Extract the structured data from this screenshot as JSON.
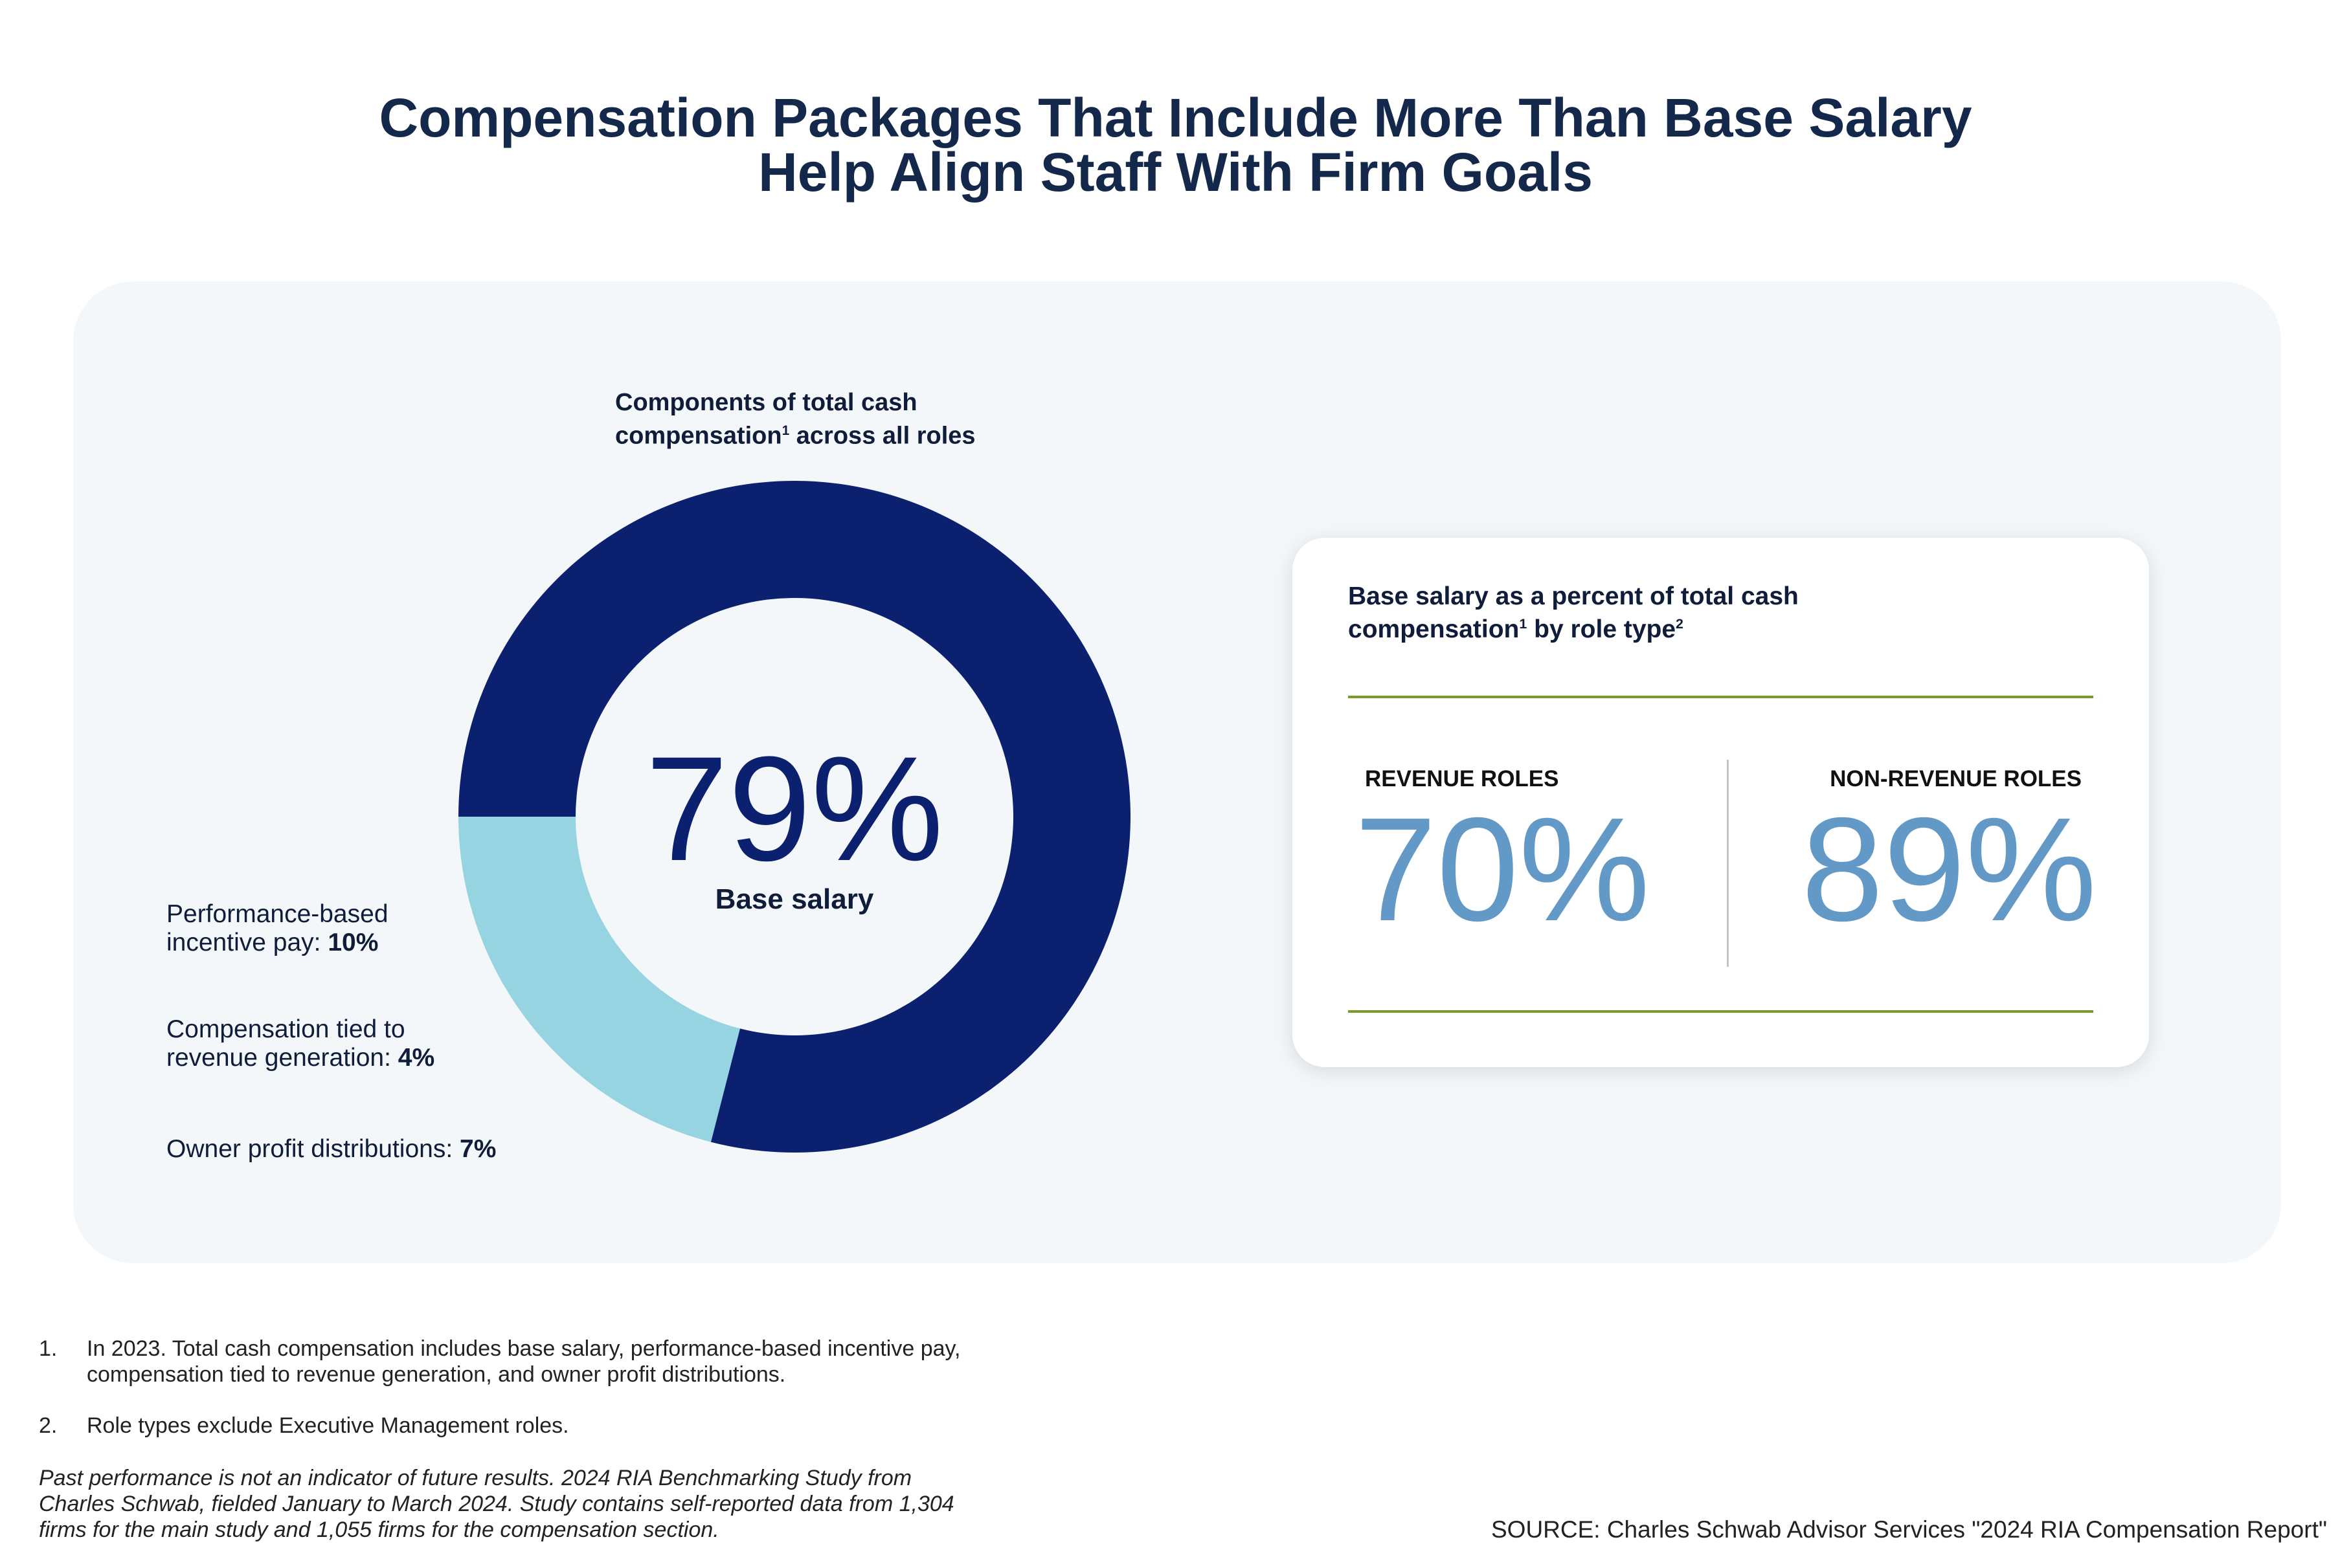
{
  "title": {
    "line1": "Compensation Packages That Include More Than Base Salary",
    "line2": "Help Align Staff With Firm Goals"
  },
  "chart_data": {
    "type": "pie",
    "title_line1": "Components of total cash",
    "title_line2": "compensation",
    "title_sup": "1",
    "title_line2_rest": " across all roles",
    "center_value": "79%",
    "center_label": "Base salary",
    "slices": [
      {
        "name": "Base salary",
        "value": 79,
        "color": "#0c2070"
      },
      {
        "name": "Performance-based incentive pay, compensation tied to revenue generation, owner profit distributions",
        "value": 21,
        "color": "#97d4e1"
      }
    ],
    "labels": [
      {
        "line1": "Performance-based",
        "line2": "incentive pay: ",
        "value": "10%"
      },
      {
        "line1": "Compensation tied to",
        "line2": "revenue generation: ",
        "value": "4%"
      },
      {
        "line1": "",
        "line2": "Owner profit distributions: ",
        "value": "7%"
      }
    ]
  },
  "card": {
    "title_line1": "Base salary as a percent of total cash",
    "title_line2": "compensation",
    "sup1": "1",
    "title_line2_rest": " by role type",
    "sup2": "2",
    "revenue_label": "REVENUE ROLES",
    "revenue_value": "70%",
    "nonrevenue_label": "NON-REVENUE ROLES",
    "nonrevenue_value": "89%",
    "accent_color": "#7a9a2a",
    "value_color": "#6299c6"
  },
  "footnotes": {
    "n1": "1.",
    "t1_line1": "In 2023. Total cash compensation includes base salary, performance-based incentive pay,",
    "t1_line2": "compensation tied to revenue generation, and owner profit distributions.",
    "n2": "2.",
    "t2": "Role types exclude Executive Management roles.",
    "disclaimer_line1": "Past performance is not an indicator of future results. 2024 RIA Benchmarking Study from",
    "disclaimer_line2": "Charles Schwab, fielded January to March 2024. Study contains self-reported data from 1,304",
    "disclaimer_line3": "firms for the main study and 1,055 firms for the compensation section."
  },
  "source": "SOURCE: Charles Schwab Advisor Services \"2024 RIA Compensation Report\""
}
